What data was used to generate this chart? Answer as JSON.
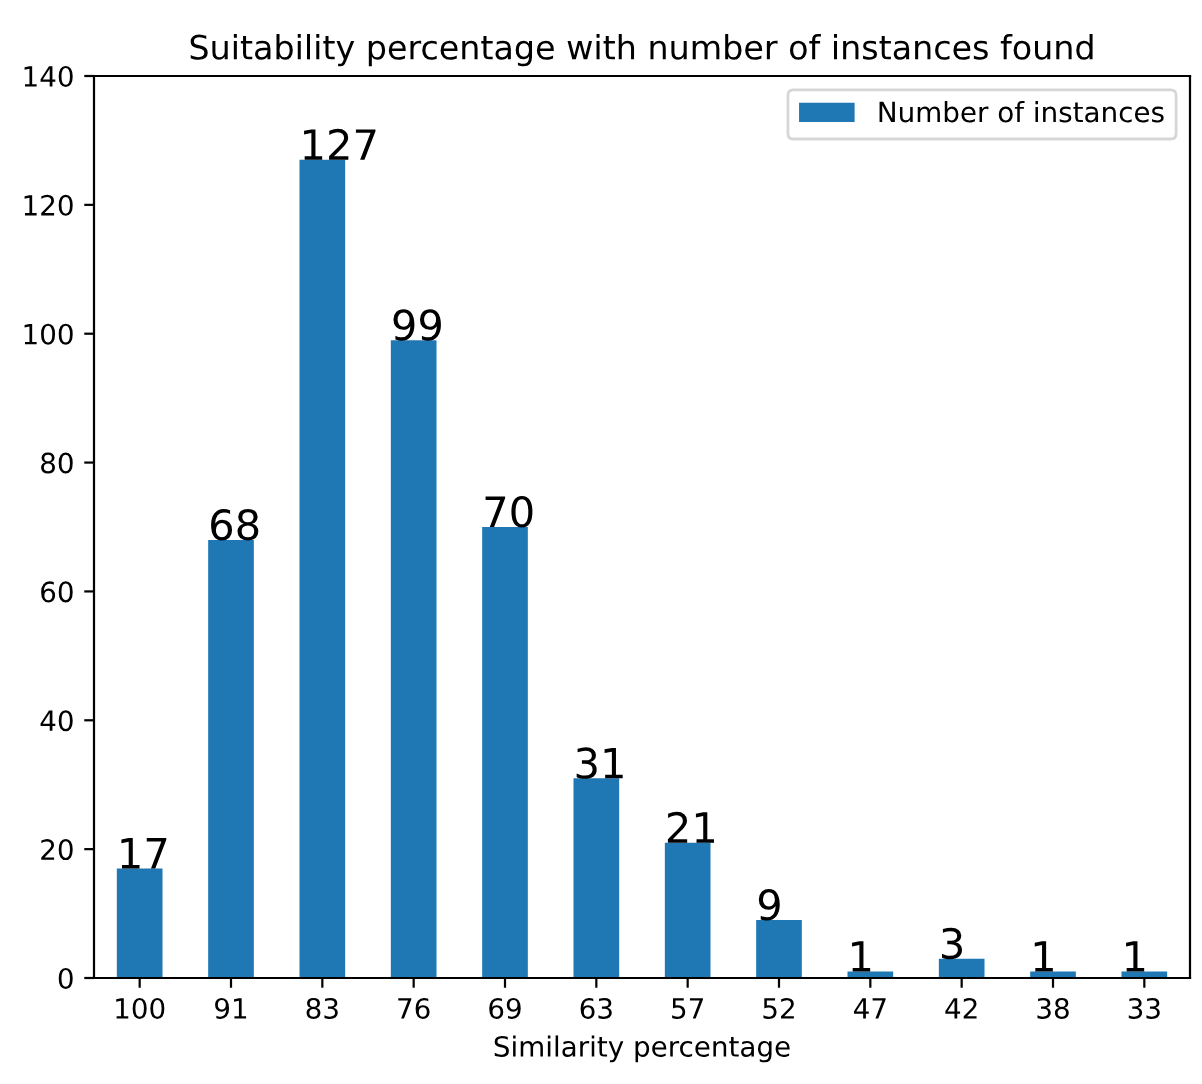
{
  "chart_data": {
    "type": "bar",
    "title": "Suitability percentage with number of instances found",
    "xlabel": "Similarity percentage",
    "categories": [
      "100",
      "91",
      "83",
      "76",
      "69",
      "63",
      "57",
      "52",
      "47",
      "42",
      "38",
      "33"
    ],
    "series": [
      {
        "name": "Number of instances",
        "color": "#1f77b4",
        "values": [
          17,
          68,
          127,
          99,
          70,
          31,
          21,
          9,
          1,
          3,
          1,
          1
        ]
      }
    ],
    "ylim": [
      0,
      140
    ],
    "yticks": [
      0,
      20,
      40,
      60,
      80,
      100,
      120,
      140
    ],
    "data_labels": true,
    "legend": "top right",
    "grid": false
  }
}
